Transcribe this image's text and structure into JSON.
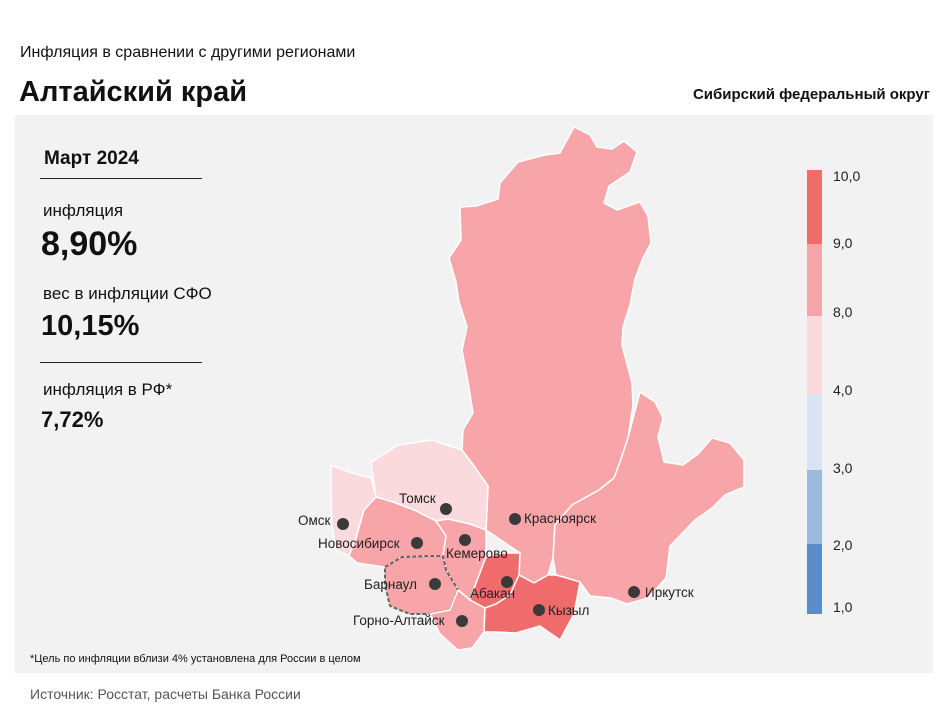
{
  "header": {
    "supertitle": "Инфляция  в сравнении  с другими  регионами",
    "title": "Алтайский край",
    "district": "Сибирский федеральный округ"
  },
  "stats": {
    "period": "Март 2024",
    "inflation_label": "инфляция",
    "inflation_value": "8,90%",
    "weight_label": "вес в инфляции  СФО",
    "weight_value": "10,15%",
    "rf_label": "инфляция  в РФ*",
    "rf_value": "7,72%"
  },
  "legend": {
    "ticks": [
      "10,0",
      "9,0",
      "8,0",
      "4,0",
      "3,0",
      "2,0",
      "1,0"
    ],
    "colors": [
      "#f06b6b",
      "#f7a5a8",
      "#fadadd",
      "#dae3f3",
      "#9dbade",
      "#5b8cc8"
    ]
  },
  "cities": {
    "omsk": "Омск",
    "tomsk": "Томск",
    "novosibirsk": "Новосибирск",
    "kemerovo": "Кемерово",
    "krasnoyarsk": "Красноярск",
    "barnaul": "Барнаул",
    "abakan": "Абакан",
    "kyzyl": "Кызыл",
    "irkutsk": "Иркутск",
    "gorno_altaysk": "Горно-Алтайск"
  },
  "footnote": "*Цель по инфляции вблизи 4% установлена для России в целом",
  "source": "Источник: Росстат, расчеты Банка России"
}
